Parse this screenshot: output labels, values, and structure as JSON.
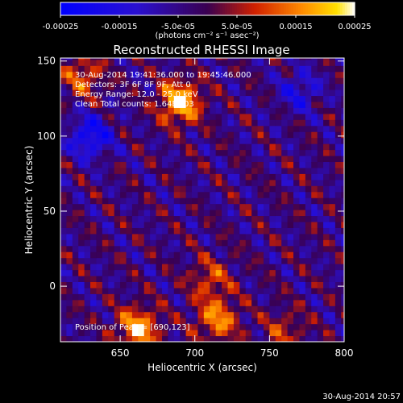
{
  "colorbar": {
    "tick_labels": [
      "-0.00025",
      "-0.00015",
      "-5.0e-05",
      "5.0e-05",
      "0.00015",
      "0.00025"
    ],
    "units_label": "(photons cm⁻² s⁻¹ asec⁻²)",
    "range": [
      -0.00025,
      0.00025
    ],
    "stops": [
      {
        "v": -0.00025,
        "c": "#0000ff"
      },
      {
        "v": -0.00012,
        "c": "#2a10d0"
      },
      {
        "v": 0.0,
        "c": "#3a0050"
      },
      {
        "v": 8e-05,
        "c": "#d02000"
      },
      {
        "v": 0.00016,
        "c": "#ff8a00"
      },
      {
        "v": 0.00022,
        "c": "#ffe000"
      },
      {
        "v": 0.00025,
        "c": "#ffffff"
      }
    ]
  },
  "chart_data": {
    "type": "heatmap",
    "title": "Reconstructed RHESSI Image",
    "xlabel": "Heliocentric X (arcsec)",
    "ylabel": "Heliocentric Y (arcsec)",
    "xlim": [
      610,
      800
    ],
    "ylim": [
      -37,
      152
    ],
    "x_ticks": [
      650,
      700,
      750,
      800
    ],
    "y_ticks": [
      0,
      50,
      100,
      150
    ],
    "x_tick_labels": [
      "650",
      "700",
      "750",
      "800"
    ],
    "y_tick_labels": [
      "0",
      "50",
      "100",
      "150"
    ],
    "annotations": [
      "30-Aug-2014 19:41:36.000 to 19:45:46.000",
      "Detectors: 3F 6F 8F 9F, Att 0",
      "Energy Range: 12.0 - 25.0 keV",
      "Clean     Total counts: 1.64E+03"
    ],
    "peak_label": "Position of Peak = [690,123]",
    "peak": [
      690,
      123
    ],
    "sources": [
      {
        "x": 690,
        "y": 123,
        "amp": 0.00025
      },
      {
        "x": 662,
        "y": -28,
        "amp": 0.00022
      },
      {
        "x": 715,
        "y": -22,
        "amp": 0.00018
      },
      {
        "x": 625,
        "y": 140,
        "amp": 0.00014
      },
      {
        "x": 710,
        "y": 5,
        "amp": 0.00012
      },
      {
        "x": 760,
        "y": -30,
        "amp": 0.0001
      }
    ],
    "negative_regions": [
      {
        "x": 630,
        "y": 100,
        "amp": -0.00018
      },
      {
        "x": 770,
        "y": 130,
        "amp": -0.00012
      }
    ]
  },
  "footer": {
    "timestamp": "30-Aug-2014 20:57"
  }
}
